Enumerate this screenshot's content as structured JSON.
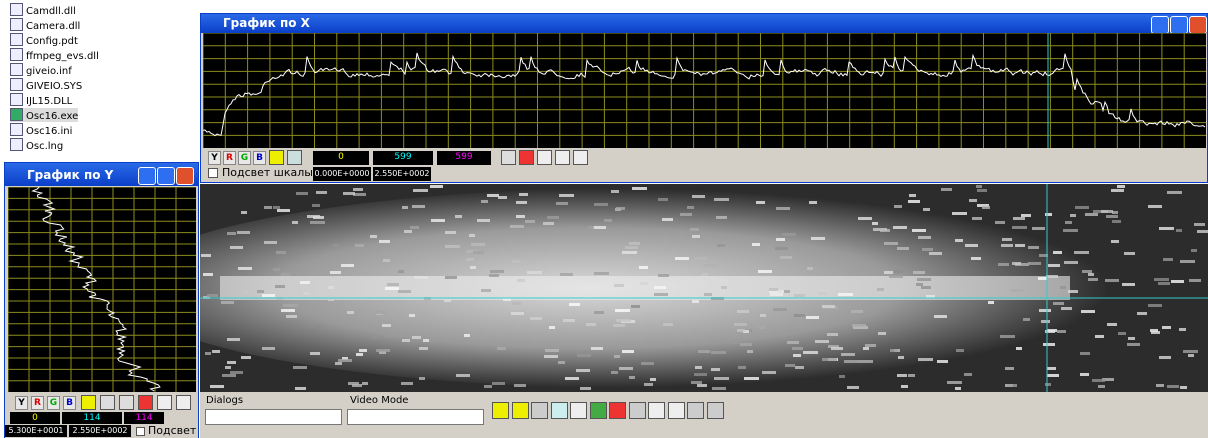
{
  "file_list": [
    "Camdll.dll",
    "Camera.dll",
    "Config.pdt",
    "ffmpeg_evs.dll",
    "giveio.inf",
    "GIVEIO.SYS",
    "IJL15.DLL",
    "Osc16.exe",
    "Osc16.ini",
    "Osc.lng"
  ],
  "window_x": {
    "title": "График по X",
    "buttons": [
      "Y",
      "R",
      "G",
      "B"
    ],
    "fields": [
      "0",
      "599",
      "599"
    ],
    "checkbox": "Подсвет шкалы",
    "range": [
      "0.000E+0000",
      "2.550E+0002"
    ]
  },
  "window_y": {
    "title": "График по Y",
    "buttons": [
      "Y",
      "R",
      "G",
      "B"
    ],
    "fields": [
      "0",
      "114",
      "114"
    ],
    "range": [
      "5.300E+0001",
      "2.550E+0002"
    ],
    "checkbox": "Подсвет"
  },
  "bottom": {
    "dialogs_label": "Dialogs",
    "video_mode_label": "Video Mode"
  }
}
